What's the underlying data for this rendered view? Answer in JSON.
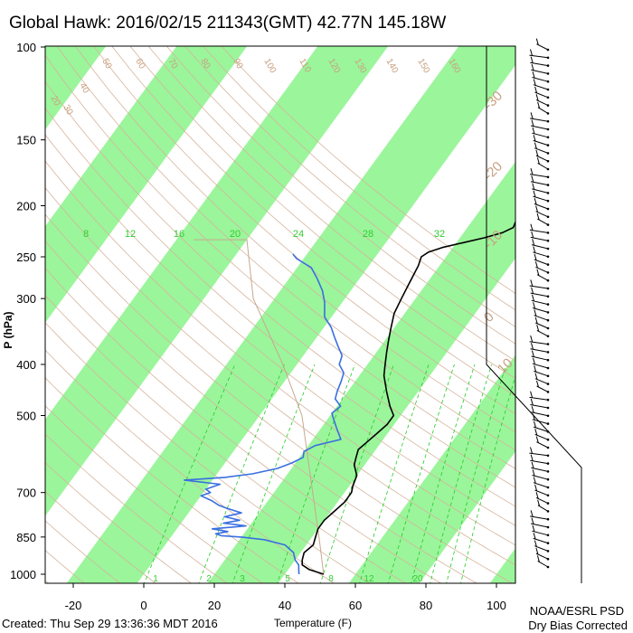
{
  "header": {
    "title": "Global Hawk: 2016/02/15 211343(GMT) 42.77N 145.18W"
  },
  "footer": {
    "created": "Created: Thu Sep 29 13:36:36 MDT 2016",
    "org": "NOAA/ESRL PSD",
    "note": "Dry Bias Corrected"
  },
  "colors": {
    "temperature_line": "#000000",
    "dewpoint_line": "#3a6fe0",
    "isotherm_band": "#9bf59b",
    "dry_adiabat": "#d6b49c",
    "mixing_ratio": "#22cc22",
    "parcel_path": "#c8a890"
  },
  "chart_data": {
    "type": "skew-t",
    "title": "Global Hawk: 2016/02/15 211343(GMT) 42.77N 145.18W",
    "xlabel": "Temperature (F)",
    "ylabel": "P (hPa)",
    "xlim": [
      -30,
      125
    ],
    "ylim": [
      1040,
      100
    ],
    "y_scale": "log",
    "x_ticks": [
      "-20",
      "0",
      "20",
      "40",
      "60",
      "80",
      "100"
    ],
    "x_tick_values": [
      -20,
      0,
      20,
      40,
      60,
      80,
      100
    ],
    "y_ticks": [
      "100",
      "150",
      "200",
      "250",
      "300",
      "400",
      "500",
      "700",
      "850",
      "1000"
    ],
    "y_tick_values": [
      100,
      150,
      200,
      250,
      300,
      400,
      500,
      700,
      850,
      1000
    ],
    "dry_adiabat_labels": [
      "20",
      "30",
      "40",
      "50",
      "60",
      "70",
      "80",
      "90",
      "100",
      "110",
      "120",
      "130",
      "140",
      "150",
      "160"
    ],
    "isotherm_labels": [
      "-30",
      "-20",
      "-10",
      "0",
      "10",
      "20",
      "30"
    ],
    "mixing_ratio_labels_top": [
      "8",
      "12",
      "16",
      "20",
      "24",
      "28",
      "32"
    ],
    "mixing_ratio_labels_bottom": [
      "1",
      "2",
      "3",
      "5",
      "8",
      "12",
      "20"
    ],
    "series": [
      {
        "name": "Temperature",
        "points": [
          {
            "p": 1000,
            "t": 51
          },
          {
            "p": 980,
            "t": 46
          },
          {
            "p": 960,
            "t": 43
          },
          {
            "p": 940,
            "t": 42
          },
          {
            "p": 910,
            "t": 41
          },
          {
            "p": 880,
            "t": 42
          },
          {
            "p": 850,
            "t": 41
          },
          {
            "p": 820,
            "t": 40
          },
          {
            "p": 790,
            "t": 40
          },
          {
            "p": 760,
            "t": 41
          },
          {
            "p": 730,
            "t": 42
          },
          {
            "p": 700,
            "t": 42
          },
          {
            "p": 680,
            "t": 41
          },
          {
            "p": 650,
            "t": 40
          },
          {
            "p": 620,
            "t": 37
          },
          {
            "p": 600,
            "t": 36
          },
          {
            "p": 580,
            "t": 35
          },
          {
            "p": 560,
            "t": 36
          },
          {
            "p": 540,
            "t": 37
          },
          {
            "p": 520,
            "t": 38
          },
          {
            "p": 500,
            "t": 38
          },
          {
            "p": 480,
            "t": 35
          },
          {
            "p": 450,
            "t": 31
          },
          {
            "p": 420,
            "t": 27
          },
          {
            "p": 400,
            "t": 25
          },
          {
            "p": 380,
            "t": 23
          },
          {
            "p": 360,
            "t": 21
          },
          {
            "p": 340,
            "t": 19
          },
          {
            "p": 320,
            "t": 17
          },
          {
            "p": 300,
            "t": 16
          },
          {
            "p": 280,
            "t": 15
          },
          {
            "p": 260,
            "t": 14
          },
          {
            "p": 250,
            "t": 13
          },
          {
            "p": 245,
            "t": 14
          },
          {
            "p": 240,
            "t": 17
          },
          {
            "p": 235,
            "t": 22
          },
          {
            "p": 230,
            "t": 27
          },
          {
            "p": 225,
            "t": 31
          },
          {
            "p": 220,
            "t": 33
          },
          {
            "p": 210,
            "t": 32
          },
          {
            "p": 200,
            "t": 33
          },
          {
            "p": 190,
            "t": 37
          },
          {
            "p": 185,
            "t": 39
          },
          {
            "p": 175,
            "t": 40
          },
          {
            "p": 165,
            "t": 42
          },
          {
            "p": 150,
            "t": 47
          },
          {
            "p": 140,
            "t": 52
          },
          {
            "p": 130,
            "t": 55
          },
          {
            "p": 125,
            "t": 58
          },
          {
            "p": 120,
            "t": 59
          },
          {
            "p": 115,
            "t": 60
          },
          {
            "p": 110,
            "t": 62
          },
          {
            "p": 105,
            "t": 65
          }
        ]
      },
      {
        "name": "Dewpoint",
        "points": [
          {
            "p": 1000,
            "t": 44
          },
          {
            "p": 980,
            "t": 43
          },
          {
            "p": 960,
            "t": 42
          },
          {
            "p": 940,
            "t": 40
          },
          {
            "p": 910,
            "t": 38
          },
          {
            "p": 880,
            "t": 34
          },
          {
            "p": 860,
            "t": 27
          },
          {
            "p": 850,
            "t": 20
          },
          {
            "p": 845,
            "t": 14
          },
          {
            "p": 838,
            "t": 12
          },
          {
            "p": 830,
            "t": 15
          },
          {
            "p": 820,
            "t": 10
          },
          {
            "p": 810,
            "t": 19
          },
          {
            "p": 800,
            "t": 12
          },
          {
            "p": 790,
            "t": 16
          },
          {
            "p": 778,
            "t": 11
          },
          {
            "p": 765,
            "t": 15
          },
          {
            "p": 750,
            "t": 10
          },
          {
            "p": 740,
            "t": 7
          },
          {
            "p": 725,
            "t": 4
          },
          {
            "p": 710,
            "t": 0
          },
          {
            "p": 700,
            "t": 2
          },
          {
            "p": 690,
            "t": 0
          },
          {
            "p": 675,
            "t": 3
          },
          {
            "p": 663,
            "t": -8
          },
          {
            "p": 655,
            "t": 3
          },
          {
            "p": 645,
            "t": 10
          },
          {
            "p": 630,
            "t": 16
          },
          {
            "p": 615,
            "t": 19
          },
          {
            "p": 600,
            "t": 21
          },
          {
            "p": 585,
            "t": 20
          },
          {
            "p": 570,
            "t": 22
          },
          {
            "p": 555,
            "t": 28
          },
          {
            "p": 540,
            "t": 26
          },
          {
            "p": 525,
            "t": 24
          },
          {
            "p": 510,
            "t": 22
          },
          {
            "p": 495,
            "t": 20
          },
          {
            "p": 480,
            "t": 21
          },
          {
            "p": 465,
            "t": 18
          },
          {
            "p": 450,
            "t": 17
          },
          {
            "p": 430,
            "t": 16
          },
          {
            "p": 415,
            "t": 15
          },
          {
            "p": 400,
            "t": 12
          },
          {
            "p": 385,
            "t": 11
          },
          {
            "p": 370,
            "t": 8
          },
          {
            "p": 355,
            "t": 5
          },
          {
            "p": 340,
            "t": 2
          },
          {
            "p": 325,
            "t": -2
          },
          {
            "p": 305,
            "t": -5
          },
          {
            "p": 290,
            "t": -8
          },
          {
            "p": 275,
            "t": -12
          },
          {
            "p": 262,
            "t": -16
          },
          {
            "p": 252,
            "t": -22
          },
          {
            "p": 247,
            "t": -24
          }
        ]
      }
    ]
  }
}
